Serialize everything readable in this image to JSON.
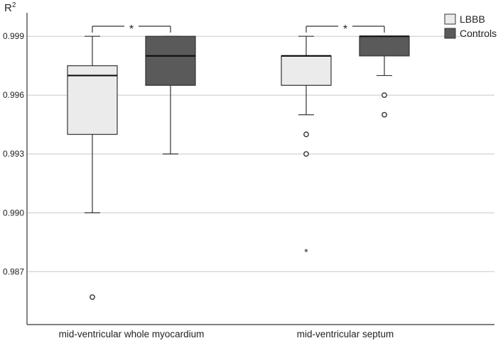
{
  "chart_data": {
    "type": "box",
    "ylabel": "R",
    "ylabel_superscript": "2",
    "ylim": [
      0.9843,
      1.0002
    ],
    "yticks": [
      0.987,
      0.99,
      0.993,
      0.996,
      0.999
    ],
    "ytick_labels": [
      "0.987",
      "0.990",
      "0.993",
      "0.996",
      "0.999"
    ],
    "grid": true,
    "legend_position": "top-right",
    "categories": [
      "mid-ventricular whole myocardium",
      "mid-ventricular septum"
    ],
    "series": [
      {
        "name": "LBBB",
        "color": "#ebebeb",
        "boxes": [
          {
            "whisker_low": 0.99,
            "q1": 0.994,
            "median": 0.997,
            "q3": 0.9975,
            "whisker_high": 0.999,
            "outliers": [
              0.9857
            ],
            "extremes": []
          },
          {
            "whisker_low": 0.995,
            "q1": 0.9965,
            "median": 0.998,
            "q3": 0.998,
            "whisker_high": 0.999,
            "outliers": [
              0.994,
              0.993
            ],
            "extremes": [
              0.988
            ]
          }
        ]
      },
      {
        "name": "Controls",
        "color": "#5a5a5a",
        "boxes": [
          {
            "whisker_low": 0.993,
            "q1": 0.9965,
            "median": 0.998,
            "q3": 0.999,
            "whisker_high": 0.999,
            "outliers": [],
            "extremes": []
          },
          {
            "whisker_low": 0.997,
            "q1": 0.998,
            "median": 0.999,
            "q3": 0.999,
            "whisker_high": 0.999,
            "outliers": [
              0.996,
              0.995
            ],
            "extremes": []
          }
        ]
      }
    ],
    "significance": [
      {
        "category": 0,
        "label": "*"
      },
      {
        "category": 1,
        "label": "*"
      }
    ]
  }
}
